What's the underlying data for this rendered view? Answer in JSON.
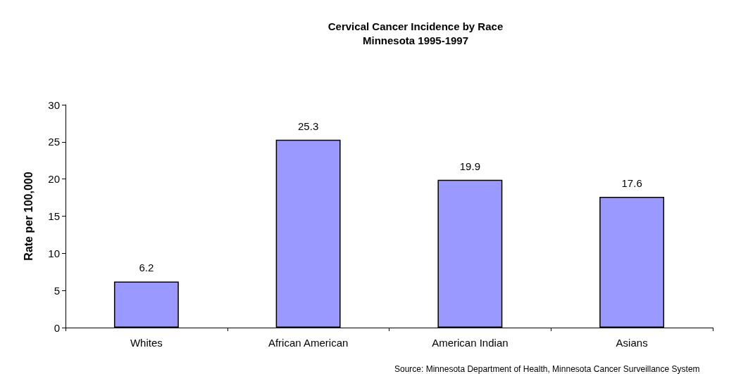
{
  "chart_data": {
    "type": "bar",
    "title": "Cervical Cancer Incidence by Race\nMinnesota 1995-1997",
    "ylabel": "Rate per 100,000",
    "categories": [
      "Whites",
      "African American",
      "American Indian",
      "Asians"
    ],
    "values": [
      6.2,
      25.3,
      19.9,
      17.6
    ],
    "color": "#9999ff",
    "ylim": [
      0,
      30
    ],
    "yticks": [
      0,
      5,
      10,
      15,
      20,
      25,
      30
    ],
    "grid": false,
    "data_labels": true,
    "annotations": [
      "Source: Minnesota Department of Health, Minnesota Cancer Surveillance System"
    ]
  }
}
